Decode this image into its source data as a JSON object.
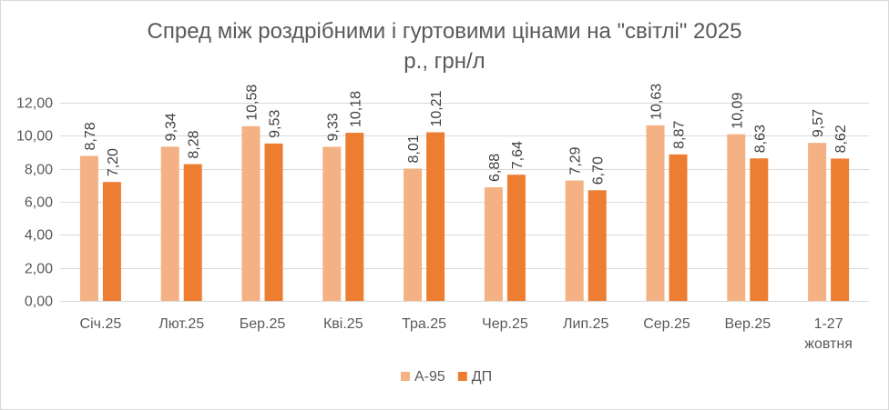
{
  "chart_data": {
    "type": "bar",
    "title_line1": "Спред між роздрібними і гуртовими цінами на \"світлі\" 2025",
    "title_line2": "р., грн/л",
    "categories": [
      [
        "Січ.25"
      ],
      [
        "Лют.25"
      ],
      [
        "Бер.25"
      ],
      [
        "Кві.25"
      ],
      [
        "Тра.25"
      ],
      [
        "Чер.25"
      ],
      [
        "Лип.25"
      ],
      [
        "Сер.25"
      ],
      [
        "Вер.25"
      ],
      [
        "1-27",
        "жовтня"
      ]
    ],
    "series": [
      {
        "name": "А-95",
        "color": "#f4b183",
        "values": [
          8.78,
          9.34,
          10.58,
          9.33,
          8.01,
          6.88,
          7.29,
          10.63,
          10.09,
          9.57
        ],
        "labels": [
          "8,78",
          "9,34",
          "10,58",
          "9,33",
          "8,01",
          "6,88",
          "7,29",
          "10,63",
          "10,09",
          "9,57"
        ]
      },
      {
        "name": "ДП",
        "color": "#ed7d31",
        "values": [
          7.2,
          8.28,
          9.53,
          10.18,
          10.21,
          7.64,
          6.7,
          8.87,
          8.63,
          8.62
        ],
        "labels": [
          "7,20",
          "8,28",
          "9,53",
          "10,18",
          "10,21",
          "7,64",
          "6,70",
          "8,87",
          "8,63",
          "8,62"
        ]
      }
    ],
    "yticks": [
      0,
      2,
      4,
      6,
      8,
      10,
      12
    ],
    "ytick_labels": [
      "0,00",
      "2,00",
      "4,00",
      "6,00",
      "8,00",
      "10,00",
      "12,00"
    ],
    "ylim": [
      0,
      12
    ],
    "grid": true,
    "legend_position": "bottom"
  }
}
